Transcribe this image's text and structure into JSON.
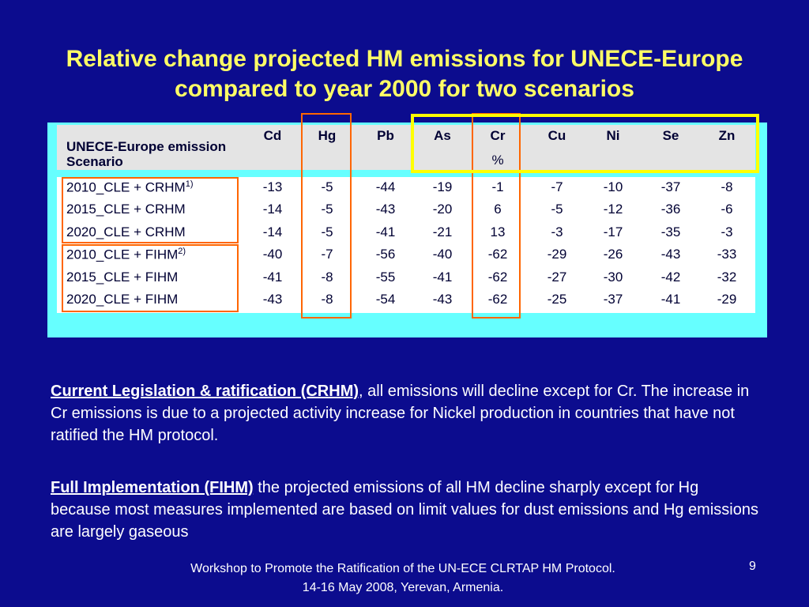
{
  "title": "Relative change projected HM emissions for UNECE-Europe compared to year 2000 for two scenarios",
  "table": {
    "corner": "UNECE-Europe emission Scenario",
    "columns": [
      "Cd",
      "Hg",
      "Pb",
      "As",
      "Cr",
      "Cu",
      "Ni",
      "Se",
      "Zn"
    ],
    "unit": "%",
    "rows": [
      {
        "name": "2010_CLE + CRHM",
        "note": "1)",
        "values": [
          -13,
          -5,
          -44,
          -19,
          -1,
          -7,
          -10,
          -37,
          -8
        ]
      },
      {
        "name": "2015_CLE + CRHM",
        "values": [
          -14,
          -5,
          -43,
          -20,
          6,
          -5,
          -12,
          -36,
          -6
        ]
      },
      {
        "name": "2020_CLE + CRHM",
        "values": [
          -14,
          -5,
          -41,
          -21,
          13,
          -3,
          -17,
          -35,
          -3
        ]
      },
      {
        "name": "2010_CLE + FIHM",
        "note": "2)",
        "values": [
          -40,
          -7,
          -56,
          -40,
          -62,
          -29,
          -26,
          -43,
          -33
        ]
      },
      {
        "name": "2015_CLE + FIHM",
        "values": [
          -41,
          -8,
          -55,
          -41,
          -62,
          -27,
          -30,
          -42,
          -32
        ]
      },
      {
        "name": "2020_CLE + FIHM",
        "values": [
          -43,
          -8,
          -54,
          -43,
          -62,
          -25,
          -37,
          -41,
          -29
        ]
      }
    ]
  },
  "paragraphs": [
    {
      "term": "Current Legislation & ratification (CRHM)",
      "text": ", all emissions will decline except for Cr. The increase in Cr emissions is due to a projected activity increase for Nickel production in countries that have not ratified the HM protocol."
    },
    {
      "term": "Full Implementation (FIHM)",
      "text": " the projected emissions of all HM decline sharply except for Hg because most measures implemented are based on limit values for dust emissions and Hg emissions are largely gaseous"
    }
  ],
  "footer": {
    "line1": "Workshop to Promote the Ratification of the UN-ECE CLRTAP HM Protocol.",
    "line2": "14-16 May 2008, Yerevan, Armenia.",
    "page": "9"
  }
}
